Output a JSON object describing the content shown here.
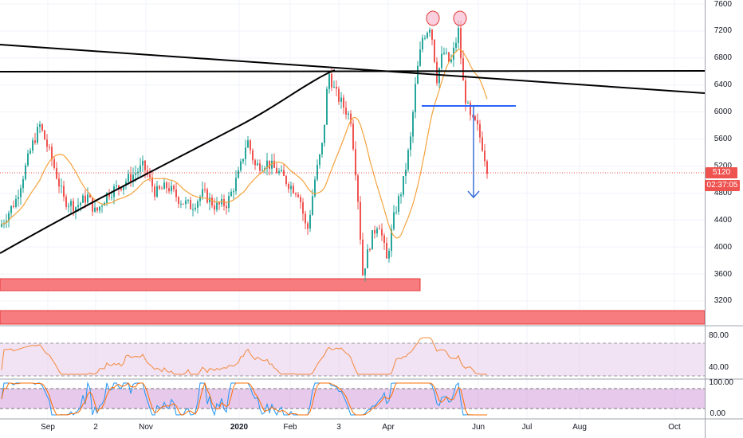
{
  "price_axis": {
    "labels": [
      "7600",
      "7200",
      "6800",
      "6400",
      "6000",
      "5600",
      "5200",
      "4800",
      "4400",
      "4000",
      "3600",
      "3200"
    ],
    "values": [
      7600,
      7200,
      6800,
      6400,
      6000,
      5600,
      5200,
      4800,
      4400,
      4000,
      3600,
      3200
    ]
  },
  "current_price": {
    "label": "5120",
    "countdown": "02:37:05",
    "color": "#ef5350"
  },
  "rsi_axis": {
    "labels": [
      "80.00",
      "40.00"
    ],
    "values": [
      80,
      40
    ]
  },
  "stoch_axis": {
    "labels": [
      "100.00",
      "0.00"
    ],
    "values": [
      100,
      0
    ]
  },
  "time_axis": {
    "labels": [
      "Sep",
      "2",
      "Nov",
      "2020",
      "Feb",
      "3",
      "Apr",
      "Jun",
      "Jul",
      "Aug",
      "Oct"
    ]
  },
  "colors": {
    "up": "#26a69a",
    "down": "#ef5350",
    "ma": "#f4a23c",
    "trendline": "#000000",
    "neckline": "#2962ff",
    "arrow": "#3a6fd8",
    "zone_fill": "#f77c80",
    "zone_border": "#e53935",
    "rsi_band": "#e1bee7",
    "stoch_band": "#ce93d8",
    "stoch_k": "#2196f3",
    "stoch_d": "#ff6d00"
  }
}
